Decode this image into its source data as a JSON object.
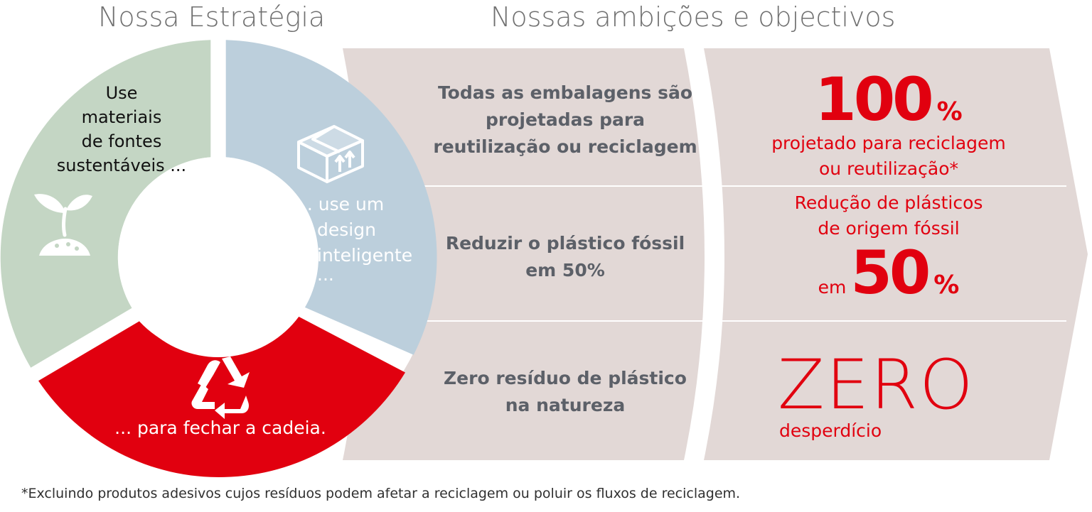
{
  "strategy": {
    "title": "Nossa Estratégia",
    "segments": [
      {
        "id": "materials",
        "lines": [
          "Use",
          "materiais",
          "de fontes",
          "sustentáveis ..."
        ],
        "icon": "seedling-icon",
        "color": "#c4d6c4"
      },
      {
        "id": "design",
        "lines": [
          "... use um",
          "design",
          "inteligente",
          "..."
        ],
        "icon": "box-icon",
        "color": "#bccfdc"
      },
      {
        "id": "cycle",
        "lines": [
          "... para fechar a cadeia."
        ],
        "icon": "recycle-icon",
        "color": "#e1000f"
      }
    ]
  },
  "ambitions": {
    "title": "Nossas ambições e objectivos",
    "rows": [
      {
        "goal_lines": [
          "Todas as embalagens são",
          "projetadas para",
          "reutilização ou reciclagem"
        ],
        "big_number": "100",
        "unit": "%",
        "detail_lines": [
          "projetado para reciclagem",
          "ou reutilização*"
        ]
      },
      {
        "goal_lines": [
          "Reduzir o plástico fóssil",
          "em 50%"
        ],
        "detail_lines": [
          "Redução de plásticos",
          "de origem fóssil"
        ],
        "prefix": "em",
        "big_number": "50",
        "unit": "%"
      },
      {
        "goal_lines": [
          "Zero resíduo de plástico",
          "na natureza"
        ],
        "big_word": "ZERO",
        "detail": "desperdício"
      }
    ]
  },
  "footnote": "*Excluindo produtos adesivos cujos resíduos podem afetar a reciclagem ou poluir os fluxos de reciclagem.",
  "colors": {
    "accent_red": "#e1000f",
    "panel": "#e2d8d6",
    "text_gray": "#5c6068",
    "heading_gray": "#707070"
  }
}
